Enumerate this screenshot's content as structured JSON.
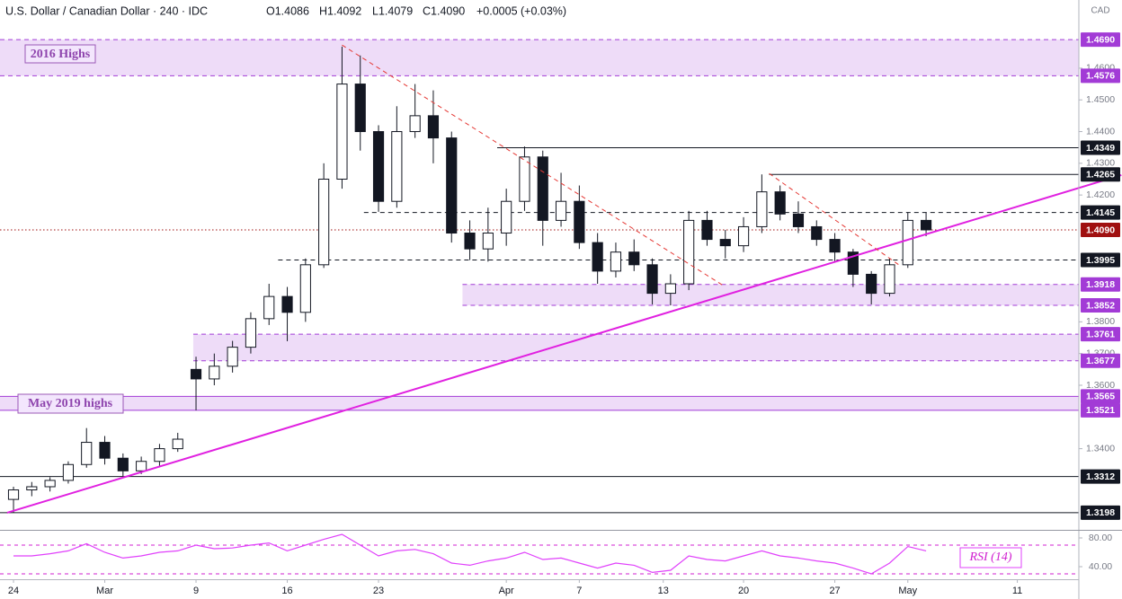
{
  "header": {
    "title": "U.S. Dollar / Canadian Dollar · 240 · IDC",
    "ohlc_legend": [
      "O1.4086",
      "H1.4092",
      "L1.4079",
      "C1.4090",
      "+0.0005 (+0.03%)"
    ],
    "currency": "CAD"
  },
  "annotations": [
    "2016 Highs",
    "May 2019 highs",
    "RSI (14)"
  ],
  "chart_data": [
    {
      "type": "candlestick",
      "x": [
        0,
        1,
        2,
        3,
        4,
        5,
        6,
        7,
        8,
        9,
        10,
        11,
        12,
        13,
        14,
        15,
        16,
        17,
        18,
        19,
        20,
        21,
        22,
        23,
        24,
        25,
        26,
        27,
        28,
        29,
        30,
        31,
        32,
        33,
        34,
        35,
        36,
        37,
        38,
        39,
        40,
        41,
        42,
        43,
        44,
        45,
        46,
        47,
        48,
        49,
        50
      ],
      "open": [
        1.324,
        1.327,
        1.328,
        1.33,
        1.335,
        1.342,
        1.337,
        1.333,
        1.336,
        1.34,
        1.365,
        1.362,
        1.366,
        1.372,
        1.381,
        1.388,
        1.383,
        1.398,
        1.425,
        1.455,
        1.44,
        1.418,
        1.44,
        1.445,
        1.438,
        1.408,
        1.403,
        1.408,
        1.418,
        1.432,
        1.412,
        1.418,
        1.405,
        1.396,
        1.402,
        1.398,
        1.389,
        1.392,
        1.412,
        1.406,
        1.404,
        1.41,
        1.421,
        1.414,
        1.41,
        1.406,
        1.402,
        1.395,
        1.389,
        1.398,
        1.412
      ],
      "high": [
        1.328,
        1.3295,
        1.331,
        1.336,
        1.3465,
        1.344,
        1.3385,
        1.3375,
        1.3415,
        1.345,
        1.369,
        1.37,
        1.374,
        1.383,
        1.392,
        1.391,
        1.4,
        1.43,
        1.4668,
        1.464,
        1.442,
        1.448,
        1.455,
        1.453,
        1.44,
        1.412,
        1.416,
        1.422,
        1.4353,
        1.434,
        1.427,
        1.423,
        1.408,
        1.405,
        1.406,
        1.4,
        1.395,
        1.415,
        1.415,
        1.409,
        1.413,
        1.4265,
        1.423,
        1.418,
        1.412,
        1.408,
        1.403,
        1.396,
        1.4,
        1.4145,
        1.4145
      ],
      "low": [
        1.3198,
        1.325,
        1.3265,
        1.329,
        1.334,
        1.335,
        1.3312,
        1.332,
        1.3345,
        1.339,
        1.3521,
        1.36,
        1.364,
        1.37,
        1.379,
        1.3739,
        1.38,
        1.397,
        1.422,
        1.434,
        1.4147,
        1.416,
        1.438,
        1.43,
        1.405,
        1.3995,
        1.399,
        1.404,
        1.415,
        1.404,
        1.41,
        1.403,
        1.392,
        1.394,
        1.396,
        1.3855,
        1.3852,
        1.39,
        1.404,
        1.4,
        1.402,
        1.408,
        1.412,
        1.408,
        1.404,
        1.399,
        1.391,
        1.3855,
        1.388,
        1.397,
        1.407
      ],
      "close": [
        1.327,
        1.328,
        1.33,
        1.335,
        1.342,
        1.337,
        1.333,
        1.336,
        1.34,
        1.343,
        1.362,
        1.366,
        1.372,
        1.381,
        1.388,
        1.383,
        1.398,
        1.425,
        1.455,
        1.44,
        1.418,
        1.44,
        1.445,
        1.438,
        1.408,
        1.403,
        1.408,
        1.418,
        1.432,
        1.412,
        1.418,
        1.405,
        1.396,
        1.402,
        1.398,
        1.389,
        1.392,
        1.412,
        1.406,
        1.404,
        1.41,
        1.421,
        1.414,
        1.41,
        1.406,
        1.402,
        1.395,
        1.389,
        1.398,
        1.412,
        1.409
      ],
      "up_color": "#ffffff",
      "down_color": "#131722",
      "xlim": [
        -0.74,
        58.37
      ],
      "xticks": [
        {
          "value": 0,
          "label": "24"
        },
        {
          "value": 5,
          "label": "Mar"
        },
        {
          "value": 10,
          "label": "9"
        },
        {
          "value": 15,
          "label": "16"
        },
        {
          "value": 20,
          "label": "23"
        },
        {
          "value": 27,
          "label": "Apr"
        },
        {
          "value": 31,
          "label": "7"
        },
        {
          "value": 35.6,
          "label": "13"
        },
        {
          "value": 40,
          "label": "20"
        },
        {
          "value": 45,
          "label": "27"
        },
        {
          "value": 49,
          "label": "May"
        },
        {
          "value": 55,
          "label": "11"
        }
      ],
      "ylim": [
        1.3144,
        1.4815
      ],
      "yticks": [
        {
          "value": 1.34,
          "label": "1.3400"
        },
        {
          "value": 1.36,
          "label": "1.3600"
        },
        {
          "value": 1.37,
          "label": "1.3700"
        },
        {
          "value": 1.38,
          "label": "1.3800"
        },
        {
          "value": 1.42,
          "label": "1.4200"
        },
        {
          "value": 1.43,
          "label": "1.4300"
        },
        {
          "value": 1.44,
          "label": "1.4400"
        },
        {
          "value": 1.45,
          "label": "1.4500"
        },
        {
          "value": 1.46,
          "label": "1.4600"
        }
      ],
      "grid": false,
      "zones": [
        {
          "top": {
            "value": 1.469,
            "label": "1.4690"
          },
          "bottom": {
            "value": 1.4576,
            "label": "1.4576"
          },
          "from": -0.74,
          "border": "dashed"
        },
        {
          "top": {
            "value": 1.3918,
            "label": "1.3918"
          },
          "bottom": {
            "value": 1.3852,
            "label": "1.3852"
          },
          "from": 24.6,
          "border": "dashed"
        },
        {
          "top": {
            "value": 1.3761,
            "label": "1.3761"
          },
          "bottom": {
            "value": 1.3677,
            "label": "1.3677"
          },
          "from": 9.85,
          "border": "dashed"
        },
        {
          "top": {
            "value": 1.3565,
            "label": "1.3565"
          },
          "bottom": {
            "value": 1.3521,
            "label": "1.3521"
          },
          "from": -0.74,
          "border": "solid"
        }
      ],
      "zone_color": "#a23bd6",
      "levels": [
        {
          "value": 1.4349,
          "label": "1.4349",
          "style": "solid",
          "from": 26.5,
          "color": "#131722"
        },
        {
          "value": 1.4265,
          "label": "1.4265",
          "style": "solid",
          "from": 41.4,
          "color": "#131722"
        },
        {
          "value": 1.4145,
          "label": "1.4145",
          "style": "dashed",
          "from": 19.2,
          "color": "#131722"
        },
        {
          "value": 1.409,
          "label": "1.4090",
          "style": "dotted",
          "from": -0.74,
          "color": "#a01010"
        },
        {
          "value": 1.3995,
          "label": "1.3995",
          "style": "dashed",
          "from": 14.5,
          "color": "#131722"
        },
        {
          "value": 1.3312,
          "label": "1.3312",
          "style": "solid",
          "from": -0.74,
          "color": "#131722"
        },
        {
          "value": 1.3198,
          "label": "1.3198",
          "style": "solid",
          "from": -0.74,
          "color": "#131722"
        }
      ],
      "trendlines": [
        {
          "color": "#e020e0",
          "style": "solid",
          "x": [
            -0.35,
            60.7
          ],
          "y": [
            1.3198,
            1.4263
          ]
        },
        {
          "color": "#e53935",
          "style": "dashed",
          "x": [
            18,
            38.9
          ],
          "y": [
            1.4673,
            1.3914
          ]
        },
        {
          "color": "#e53935",
          "style": "dashed",
          "x": [
            41.4,
            48.5
          ],
          "y": [
            1.4268,
            1.398
          ]
        }
      ]
    },
    {
      "type": "line",
      "color": "#e040fb",
      "values": [
        55,
        55,
        58,
        62,
        72,
        60,
        52,
        55,
        60,
        62,
        70,
        65,
        66,
        70,
        73,
        62,
        70,
        78,
        85,
        70,
        55,
        62,
        64,
        58,
        45,
        42,
        48,
        52,
        60,
        50,
        52,
        45,
        38,
        45,
        42,
        32,
        35,
        55,
        50,
        48,
        55,
        62,
        55,
        52,
        48,
        45,
        38,
        30,
        45,
        68,
        62
      ],
      "ylim": [
        22.5,
        88.75
      ],
      "yticks": [
        {
          "value": 40,
          "label": "40.00"
        },
        {
          "value": 80,
          "label": "80.00"
        }
      ],
      "bands": [
        70,
        30
      ],
      "band_color": "#d020d0"
    }
  ]
}
